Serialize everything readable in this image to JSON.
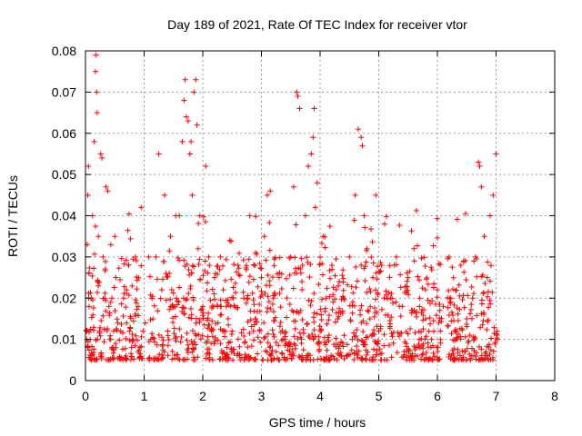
{
  "chart_data": {
    "type": "scatter",
    "title": "Day 189 of 2021, Rate Of TEC Index for receiver vtor",
    "xlabel": "GPS time / hours",
    "ylabel": "ROTI / TECUs",
    "xlim": [
      0,
      8
    ],
    "ylim": [
      0,
      0.08
    ],
    "xticks": [
      "0",
      "1",
      "2",
      "3",
      "4",
      "5",
      "6",
      "7",
      "8"
    ],
    "yticks": [
      "0",
      "0.01",
      "0.02",
      "0.03",
      "0.04",
      "0.05",
      "0.06",
      "0.07",
      "0.08"
    ],
    "grid": true,
    "marker": "plus",
    "color": "#ff0000",
    "series": [
      {
        "x": [
          0.02,
          0.03,
          0.04,
          0.05,
          0.06,
          0.08,
          0.1,
          0.12,
          0.15,
          0.17,
          0.18,
          0.19,
          0.2,
          0.22,
          0.24,
          0.26,
          0.28,
          0.3,
          0.33,
          0.35,
          0.38,
          0.4,
          0.43,
          0.45,
          0.48,
          0.5,
          0.52,
          0.55,
          0.6,
          0.65,
          0.7,
          0.75,
          0.8,
          0.85,
          0.9,
          0.95,
          0.98,
          1.02,
          1.08,
          1.15,
          1.2,
          1.25,
          1.3,
          1.35,
          1.4,
          1.45,
          1.5,
          1.55,
          1.6,
          1.65,
          1.68,
          1.7,
          1.72,
          1.75,
          1.78,
          1.8,
          1.82,
          1.85,
          1.88,
          1.9,
          1.92,
          1.95,
          2.0,
          2.05,
          2.1,
          2.15,
          2.2,
          2.25,
          2.3,
          2.35,
          2.4,
          2.5,
          2.6,
          2.7,
          2.8,
          2.9,
          3.0,
          3.05,
          3.1,
          3.15,
          3.2,
          3.3,
          3.4,
          3.5,
          3.55,
          3.6,
          3.62,
          3.65,
          3.7,
          3.75,
          3.8,
          3.85,
          3.88,
          3.9,
          3.92,
          3.95,
          4.0,
          4.05,
          4.1,
          4.2,
          4.3,
          4.4,
          4.5,
          4.6,
          4.65,
          4.7,
          4.72,
          4.75,
          4.8,
          4.85,
          4.9,
          4.95,
          5.0,
          5.05,
          5.1,
          5.2,
          5.3,
          5.4,
          5.5,
          5.6,
          5.7,
          5.8,
          5.9,
          6.0,
          6.05,
          6.1,
          6.2,
          6.3,
          6.4,
          6.5,
          6.6,
          6.65,
          6.7,
          6.72,
          6.75,
          6.8,
          6.85,
          6.9,
          6.95,
          7.0,
          7.02
        ],
        "y": [
          0.012,
          0.033,
          0.045,
          0.052,
          0.026,
          0.01,
          0.02,
          0.04,
          0.058,
          0.075,
          0.079,
          0.07,
          0.065,
          0.035,
          0.012,
          0.055,
          0.054,
          0.03,
          0.02,
          0.047,
          0.046,
          0.018,
          0.01,
          0.02,
          0.012,
          0.035,
          0.008,
          0.014,
          0.012,
          0.02,
          0.022,
          0.012,
          0.01,
          0.03,
          0.018,
          0.042,
          0.012,
          0.014,
          0.03,
          0.015,
          0.03,
          0.055,
          0.022,
          0.045,
          0.012,
          0.035,
          0.018,
          0.02,
          0.04,
          0.058,
          0.068,
          0.073,
          0.064,
          0.063,
          0.055,
          0.058,
          0.045,
          0.07,
          0.073,
          0.062,
          0.032,
          0.04,
          0.018,
          0.052,
          0.03,
          0.012,
          0.025,
          0.018,
          0.03,
          0.022,
          0.018,
          0.012,
          0.028,
          0.02,
          0.04,
          0.015,
          0.025,
          0.035,
          0.045,
          0.046,
          0.02,
          0.025,
          0.01,
          0.03,
          0.047,
          0.07,
          0.069,
          0.066,
          0.028,
          0.04,
          0.052,
          0.055,
          0.059,
          0.066,
          0.042,
          0.048,
          0.012,
          0.035,
          0.02,
          0.028,
          0.015,
          0.02,
          0.03,
          0.045,
          0.061,
          0.059,
          0.057,
          0.04,
          0.032,
          0.015,
          0.025,
          0.045,
          0.012,
          0.028,
          0.038,
          0.02,
          0.03,
          0.018,
          0.025,
          0.032,
          0.02,
          0.015,
          0.01,
          0.022,
          0.012,
          0.018,
          0.03,
          0.012,
          0.028,
          0.015,
          0.02,
          0.03,
          0.053,
          0.052,
          0.047,
          0.035,
          0.025,
          0.04,
          0.045,
          0.055,
          0.01
        ]
      }
    ]
  }
}
